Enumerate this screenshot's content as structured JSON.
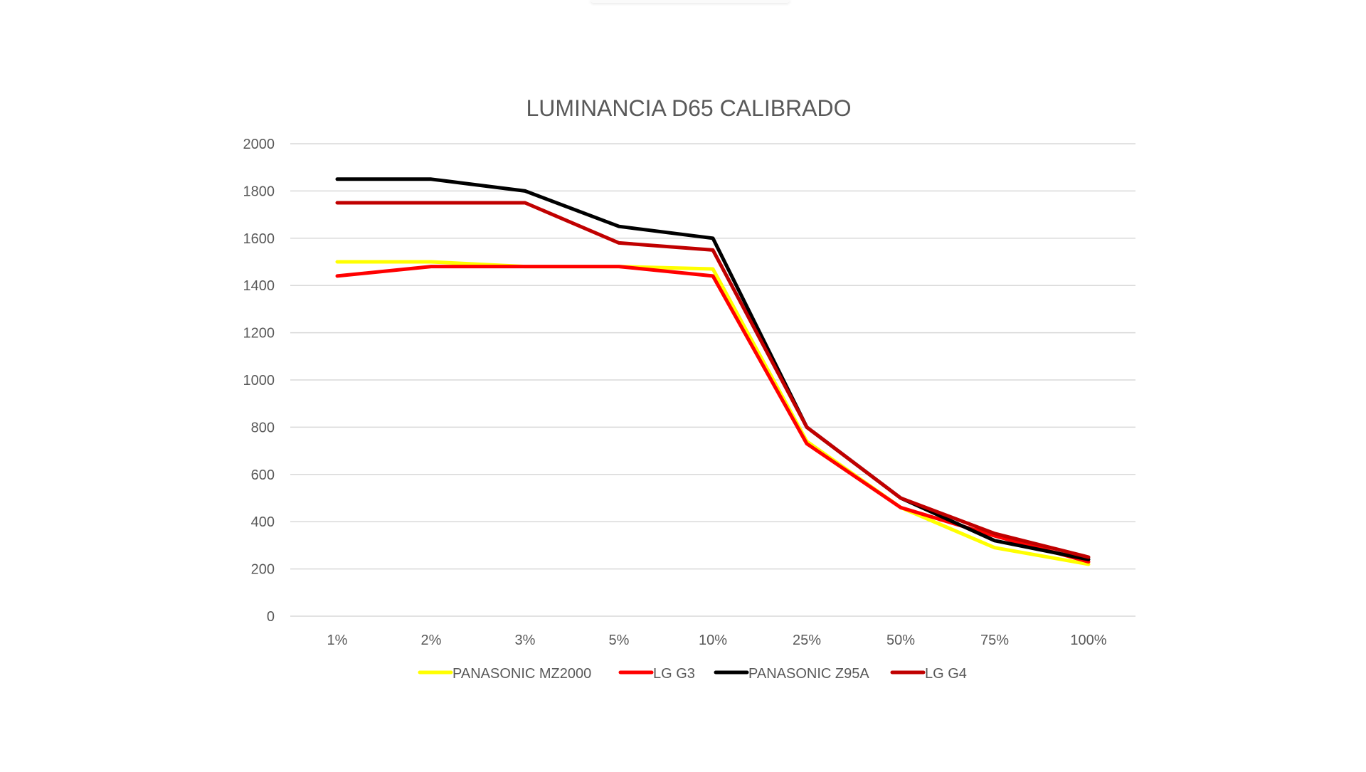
{
  "chart_data": {
    "type": "line",
    "title": "LUMINANCIA D65 CALIBRADO",
    "xlabel": "",
    "ylabel": "",
    "categories": [
      "1%",
      "2%",
      "3%",
      "5%",
      "10%",
      "25%",
      "50%",
      "75%",
      "100%"
    ],
    "ylim": [
      0,
      2000
    ],
    "yticks": [
      "0",
      "200",
      "400",
      "600",
      "800",
      "1000",
      "1200",
      "1400",
      "1600",
      "1800",
      "2000"
    ],
    "grid": true,
    "legend_position": "bottom",
    "series": [
      {
        "name": "PANASONIC MZ2000",
        "color": "#FFFF00",
        "values": [
          1500,
          1500,
          1480,
          1480,
          1470,
          740,
          460,
          290,
          220
        ]
      },
      {
        "name": "LG G3",
        "color": "#FF0000",
        "values": [
          1440,
          1480,
          1480,
          1480,
          1440,
          730,
          460,
          340,
          230
        ]
      },
      {
        "name": "PANASONIC Z95A",
        "color": "#000000",
        "values": [
          1850,
          1850,
          1800,
          1650,
          1600,
          800,
          500,
          320,
          240
        ]
      },
      {
        "name": "LG G4",
        "color": "#C00000",
        "values": [
          1750,
          1750,
          1750,
          1580,
          1550,
          800,
          500,
          350,
          250
        ]
      }
    ]
  }
}
